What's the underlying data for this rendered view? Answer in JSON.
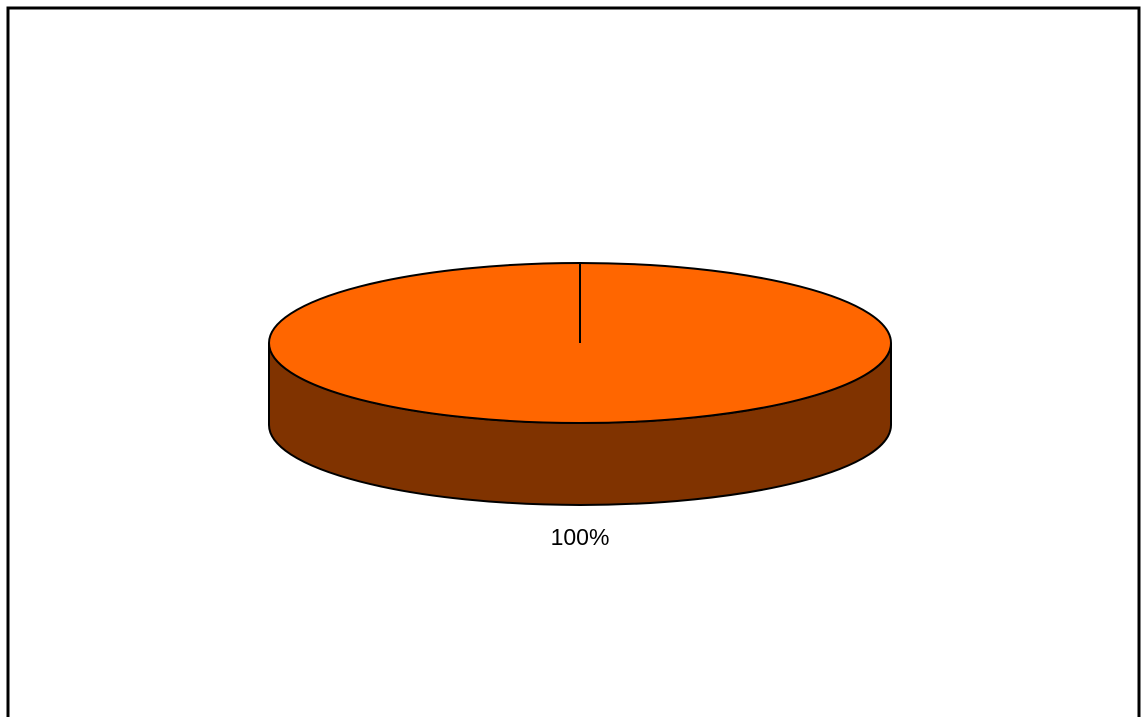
{
  "chart_data": {
    "type": "pie",
    "style": "3d",
    "slices": [
      {
        "value": 100,
        "label": "100%",
        "top_color": "#FF6600",
        "side_color": "#803300"
      }
    ],
    "legend": "none"
  }
}
